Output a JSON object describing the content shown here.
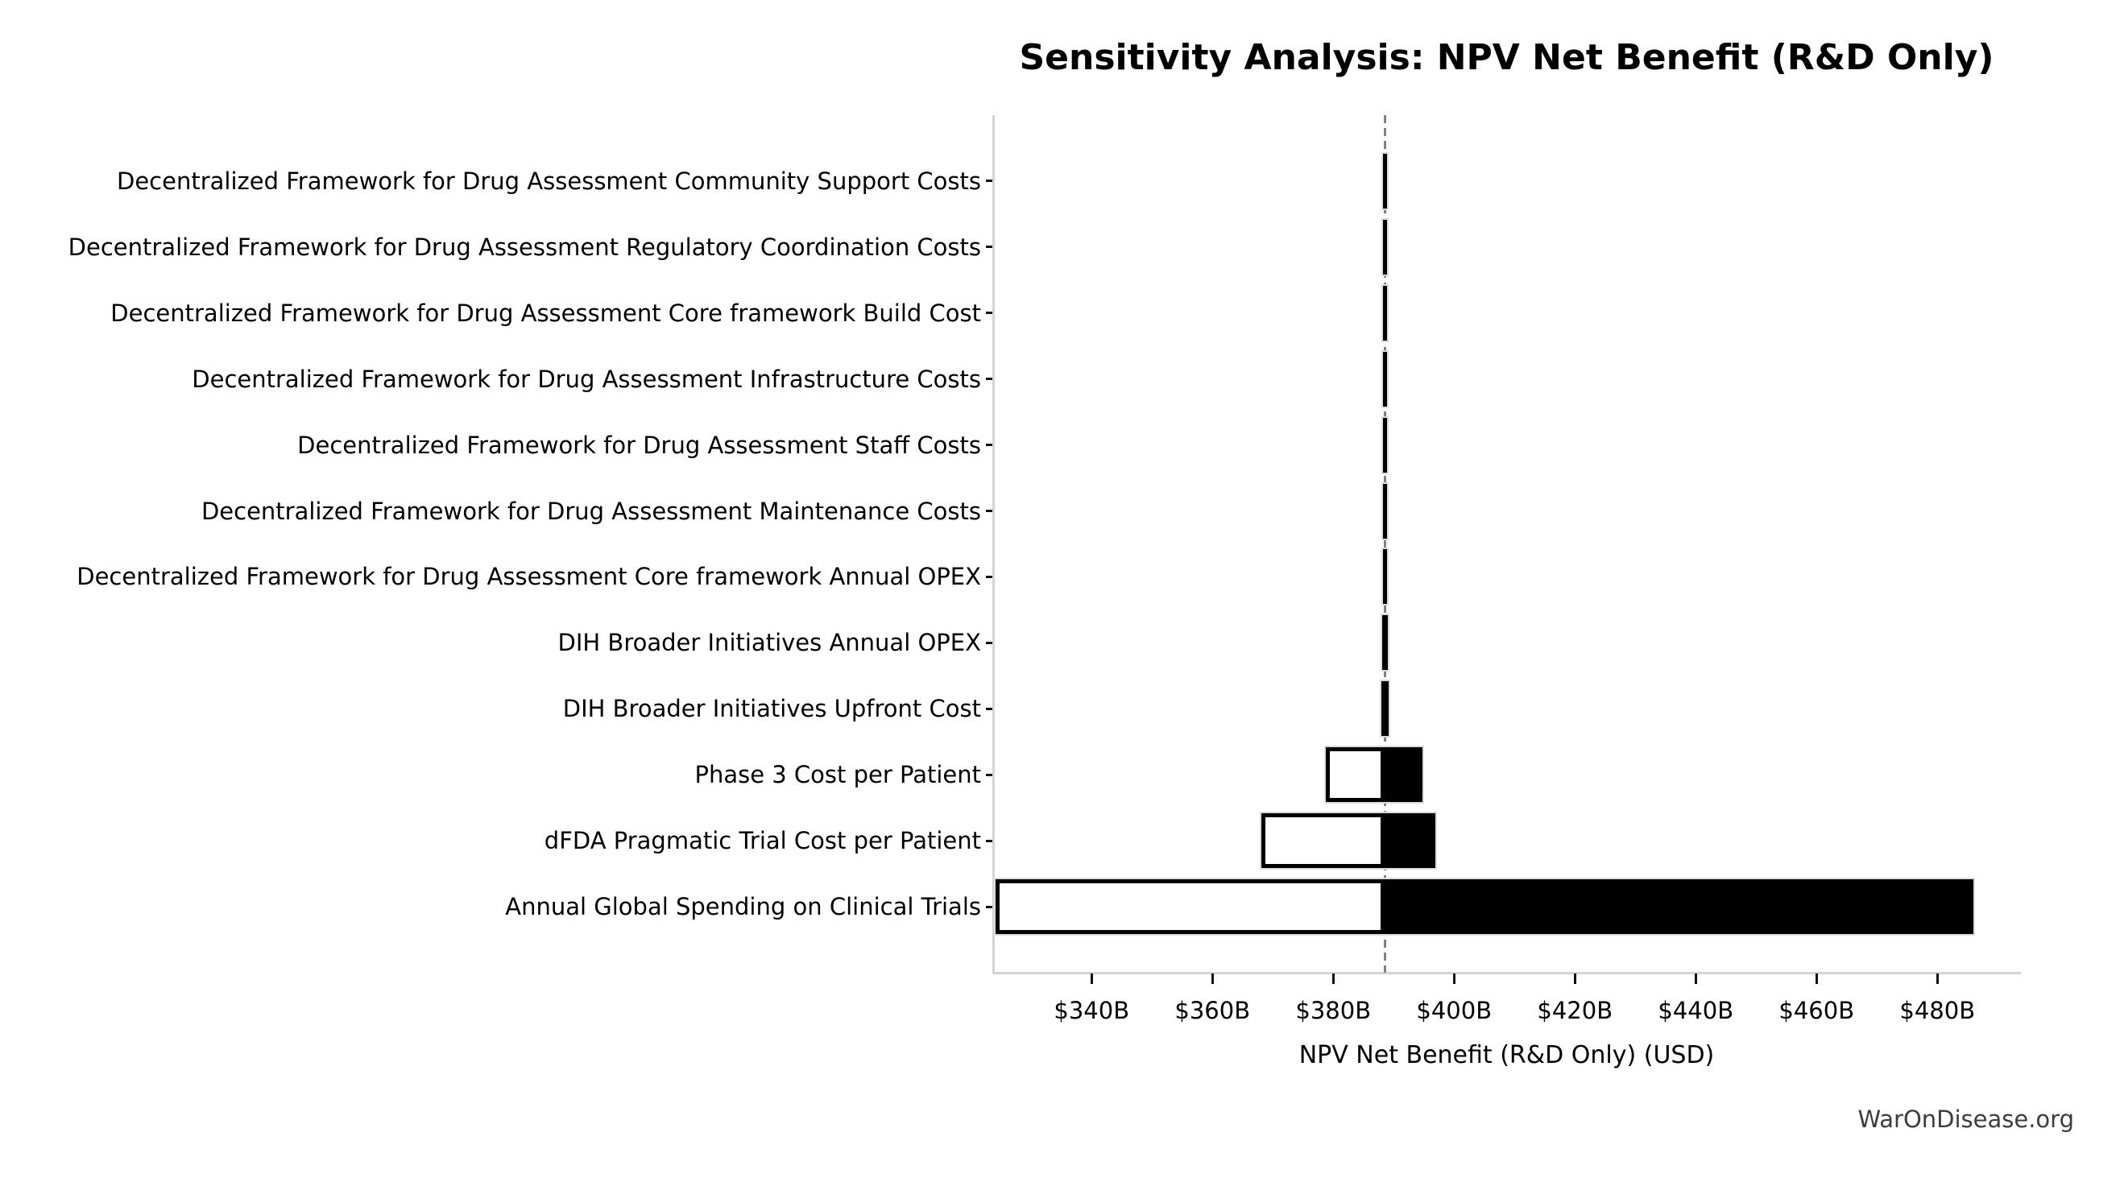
{
  "chart_data": {
    "type": "bar",
    "variant": "tornado-sensitivity",
    "orientation": "horizontal",
    "title": "Sensitivity Analysis: NPV Net Benefit (R&D Only)",
    "xlabel": "NPV Net Benefit (R&D Only) (USD)",
    "watermark": "WarOnDisease.org",
    "unit": "billion USD",
    "baseline_value": 388.5,
    "xlim": [
      323.7,
      493.7
    ],
    "grid": false,
    "legend_position": "none",
    "xticks": [
      {
        "value": 340,
        "label": "$340B"
      },
      {
        "value": 360,
        "label": "$360B"
      },
      {
        "value": 380,
        "label": "$380B"
      },
      {
        "value": 400,
        "label": "$400B"
      },
      {
        "value": 420,
        "label": "$420B"
      },
      {
        "value": 440,
        "label": "$440B"
      },
      {
        "value": 460,
        "label": "$460B"
      },
      {
        "value": 480,
        "label": "$480B"
      }
    ],
    "rows": [
      {
        "label": "Decentralized Framework for Drug Assessment Community Support Costs",
        "low": 388.2,
        "high": 388.9
      },
      {
        "label": "Decentralized Framework for Drug Assessment Regulatory Coordination Costs",
        "low": 388.2,
        "high": 388.9
      },
      {
        "label": "Decentralized Framework for Drug Assessment Core framework Build Cost",
        "low": 388.2,
        "high": 388.9
      },
      {
        "label": "Decentralized Framework for Drug Assessment Infrastructure Costs",
        "low": 388.2,
        "high": 388.9
      },
      {
        "label": "Decentralized Framework for Drug Assessment Staff Costs",
        "low": 388.2,
        "high": 388.9
      },
      {
        "label": "Decentralized Framework for Drug Assessment Maintenance Costs",
        "low": 388.2,
        "high": 388.9
      },
      {
        "label": "Decentralized Framework for Drug Assessment Core framework Annual OPEX",
        "low": 388.2,
        "high": 388.9
      },
      {
        "label": "DIH Broader Initiatives Annual OPEX",
        "low": 388.1,
        "high": 389.0
      },
      {
        "label": "DIH Broader Initiatives Upfront Cost",
        "low": 388.0,
        "high": 389.1
      },
      {
        "label": "Phase 3 Cost per Patient",
        "low": 378.8,
        "high": 394.8
      },
      {
        "label": "dFDA Pragmatic Trial Cost per Patient",
        "low": 368.1,
        "high": 396.9
      },
      {
        "label": "Annual Global Spending on Clinical Trials",
        "low": 324.1,
        "high": 486.0
      }
    ],
    "colors": {
      "low_fill": "#ffffff",
      "high_fill": "#000000",
      "bar_edge": "#000000",
      "bar_outline": "#dcdcdc",
      "baseline_dash": "#808080",
      "axis_spine": "#d4d4d4",
      "text": "#000000",
      "watermark_text": "#3d3d3d"
    }
  }
}
